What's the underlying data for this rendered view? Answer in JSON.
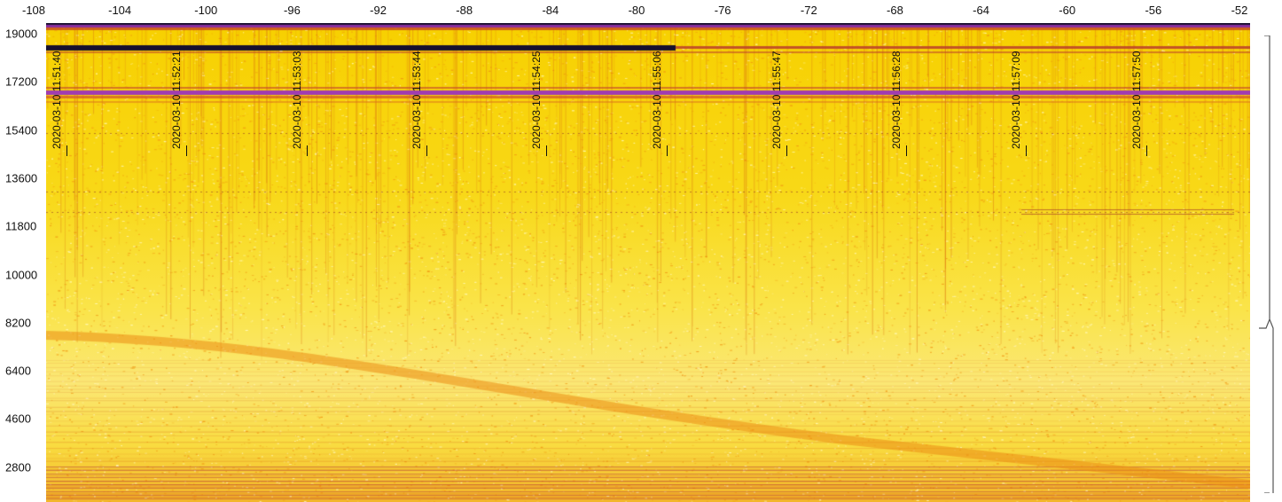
{
  "x_axis": {
    "ticks": [
      "-108",
      "-104",
      "-100",
      "-96",
      "-92",
      "-88",
      "-84",
      "-80",
      "-76",
      "-72",
      "-68",
      "-64",
      "-60",
      "-56",
      "-52"
    ],
    "min": -108,
    "max": -52
  },
  "y_axis": {
    "ticks": [
      "19000",
      "17200",
      "15400",
      "13600",
      "11800",
      "10000",
      "8200",
      "6400",
      "4600",
      "2800"
    ]
  },
  "timestamps": [
    "2020-03-10 11:51:40",
    "2020-03-10 11:52:21",
    "2020-03-10 11:53:03",
    "2020-03-10 11:53:44",
    "2020-03-10 11:54:25",
    "2020-03-10 11:55:06",
    "2020-03-10 11:55:47",
    "2020-03-10 11:56:28",
    "2020-03-10 11:57:09",
    "2020-03-10 11:57:50"
  ],
  "colors": {
    "background_yellow": "#f8d817",
    "band_dark": "#1a0f3a",
    "band_purple": "#9a3aa8",
    "band_orange": "#e06020"
  }
}
